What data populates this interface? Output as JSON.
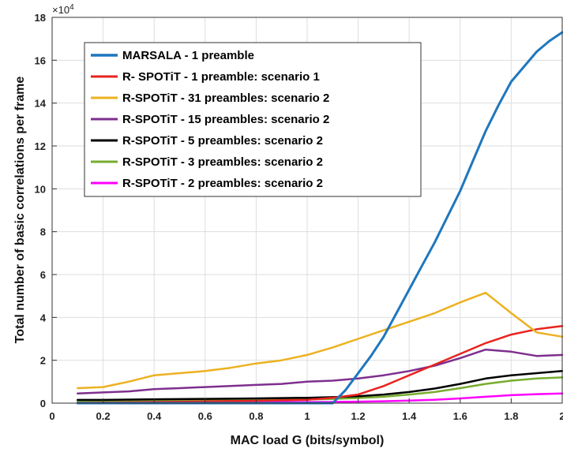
{
  "chart_data": {
    "type": "line",
    "xlabel": "MAC load G (bits/symbol)",
    "ylabel": "Total number of basic correlations per frame",
    "y_exponent_label": "×10",
    "y_exponent_power": "4",
    "xlim": [
      0,
      2
    ],
    "ylim": [
      0,
      180000
    ],
    "x_ticks": [
      0,
      0.2,
      0.4,
      0.6,
      0.8,
      1,
      1.2,
      1.4,
      1.6,
      1.8,
      2
    ],
    "x_tick_labels": [
      "0",
      "0.2",
      "0.4",
      "0.6",
      "0.8",
      "1",
      "1.2",
      "1.4",
      "1.6",
      "1.8",
      "2"
    ],
    "y_ticks": [
      0,
      20000,
      40000,
      60000,
      80000,
      100000,
      120000,
      140000,
      160000,
      180000
    ],
    "y_tick_labels": [
      "0",
      "2",
      "4",
      "6",
      "8",
      "10",
      "12",
      "14",
      "16",
      "18"
    ],
    "grid": true,
    "legend_position": "top-left",
    "series": [
      {
        "name": "MARSALA - 1 preamble",
        "color": "#1f77bd",
        "width": 3,
        "x": [
          0.1,
          0.2,
          0.4,
          0.6,
          0.8,
          1.0,
          1.1,
          1.15,
          1.2,
          1.25,
          1.3,
          1.35,
          1.4,
          1.45,
          1.5,
          1.55,
          1.6,
          1.65,
          1.7,
          1.75,
          1.8,
          1.85,
          1.9,
          1.95,
          2.0
        ],
        "y": [
          0,
          0,
          0,
          0,
          0,
          0,
          0,
          6000,
          14000,
          22000,
          31000,
          42000,
          53000,
          64000,
          75000,
          87000,
          99000,
          113000,
          127000,
          139000,
          150000,
          157000,
          164000,
          169000,
          173000
        ]
      },
      {
        "name": "R- SPOTiT - 1 preamble: scenario 1",
        "color": "#e8231f",
        "width": 2.5,
        "x": [
          0.1,
          0.2,
          0.4,
          0.6,
          0.8,
          1.0,
          1.1,
          1.2,
          1.3,
          1.4,
          1.5,
          1.6,
          1.7,
          1.8,
          1.9,
          2.0
        ],
        "y": [
          200,
          300,
          500,
          800,
          1100,
          1600,
          2500,
          4000,
          8000,
          13000,
          18000,
          23000,
          28000,
          32000,
          34500,
          36000
        ]
      },
      {
        "name": "R-SPOTiT - 31 preambles: scenario 2",
        "color": "#edb120",
        "width": 2.5,
        "x": [
          0.1,
          0.2,
          0.3,
          0.4,
          0.5,
          0.6,
          0.7,
          0.8,
          0.9,
          1.0,
          1.1,
          1.2,
          1.3,
          1.4,
          1.5,
          1.6,
          1.7,
          1.8,
          1.9,
          2.0
        ],
        "y": [
          7000,
          7500,
          10000,
          13000,
          14000,
          15000,
          16500,
          18500,
          20000,
          22500,
          26000,
          30000,
          34000,
          38000,
          42000,
          47000,
          51500,
          42000,
          33000,
          31000
        ]
      },
      {
        "name": "R-SPOTiT - 15 preambles: scenario 2",
        "color": "#7e2f8e",
        "width": 2.5,
        "x": [
          0.1,
          0.2,
          0.3,
          0.4,
          0.5,
          0.6,
          0.7,
          0.8,
          0.9,
          1.0,
          1.1,
          1.2,
          1.3,
          1.4,
          1.5,
          1.6,
          1.7,
          1.8,
          1.9,
          2.0
        ],
        "y": [
          4500,
          5000,
          5500,
          6500,
          7000,
          7500,
          8000,
          8500,
          9000,
          10000,
          10500,
          11500,
          13000,
          15000,
          17500,
          21000,
          25000,
          24000,
          22000,
          22500
        ]
      },
      {
        "name": "R-SPOTiT - 5 preambles: scenario 2",
        "color": "#000000",
        "width": 2.5,
        "x": [
          0.1,
          0.2,
          0.4,
          0.6,
          0.8,
          1.0,
          1.1,
          1.2,
          1.3,
          1.4,
          1.5,
          1.6,
          1.7,
          1.8,
          1.9,
          2.0
        ],
        "y": [
          1500,
          1500,
          1800,
          2000,
          2200,
          2500,
          2800,
          3200,
          4000,
          5200,
          6800,
          9000,
          11500,
          13000,
          14000,
          15000
        ]
      },
      {
        "name": "R-SPOTiT - 3 preambles: scenario 2",
        "color": "#77ac30",
        "width": 2.5,
        "x": [
          0.1,
          0.2,
          0.4,
          0.6,
          0.8,
          1.0,
          1.1,
          1.2,
          1.3,
          1.4,
          1.5,
          1.6,
          1.7,
          1.8,
          1.9,
          2.0
        ],
        "y": [
          1000,
          1000,
          1100,
          1300,
          1500,
          1700,
          2000,
          2400,
          3000,
          4000,
          5200,
          7000,
          9000,
          10500,
          11500,
          12000
        ]
      },
      {
        "name": "R-SPOTiT - 2 preambles: scenario 2",
        "color": "#ff00ff",
        "width": 2.5,
        "x": [
          0.1,
          0.2,
          0.4,
          0.6,
          0.8,
          1.0,
          1.1,
          1.2,
          1.3,
          1.4,
          1.5,
          1.6,
          1.7,
          1.8,
          1.9,
          2.0
        ],
        "y": [
          300,
          300,
          350,
          400,
          450,
          500,
          550,
          700,
          900,
          1200,
          1600,
          2200,
          3000,
          3700,
          4200,
          4500
        ]
      }
    ]
  }
}
